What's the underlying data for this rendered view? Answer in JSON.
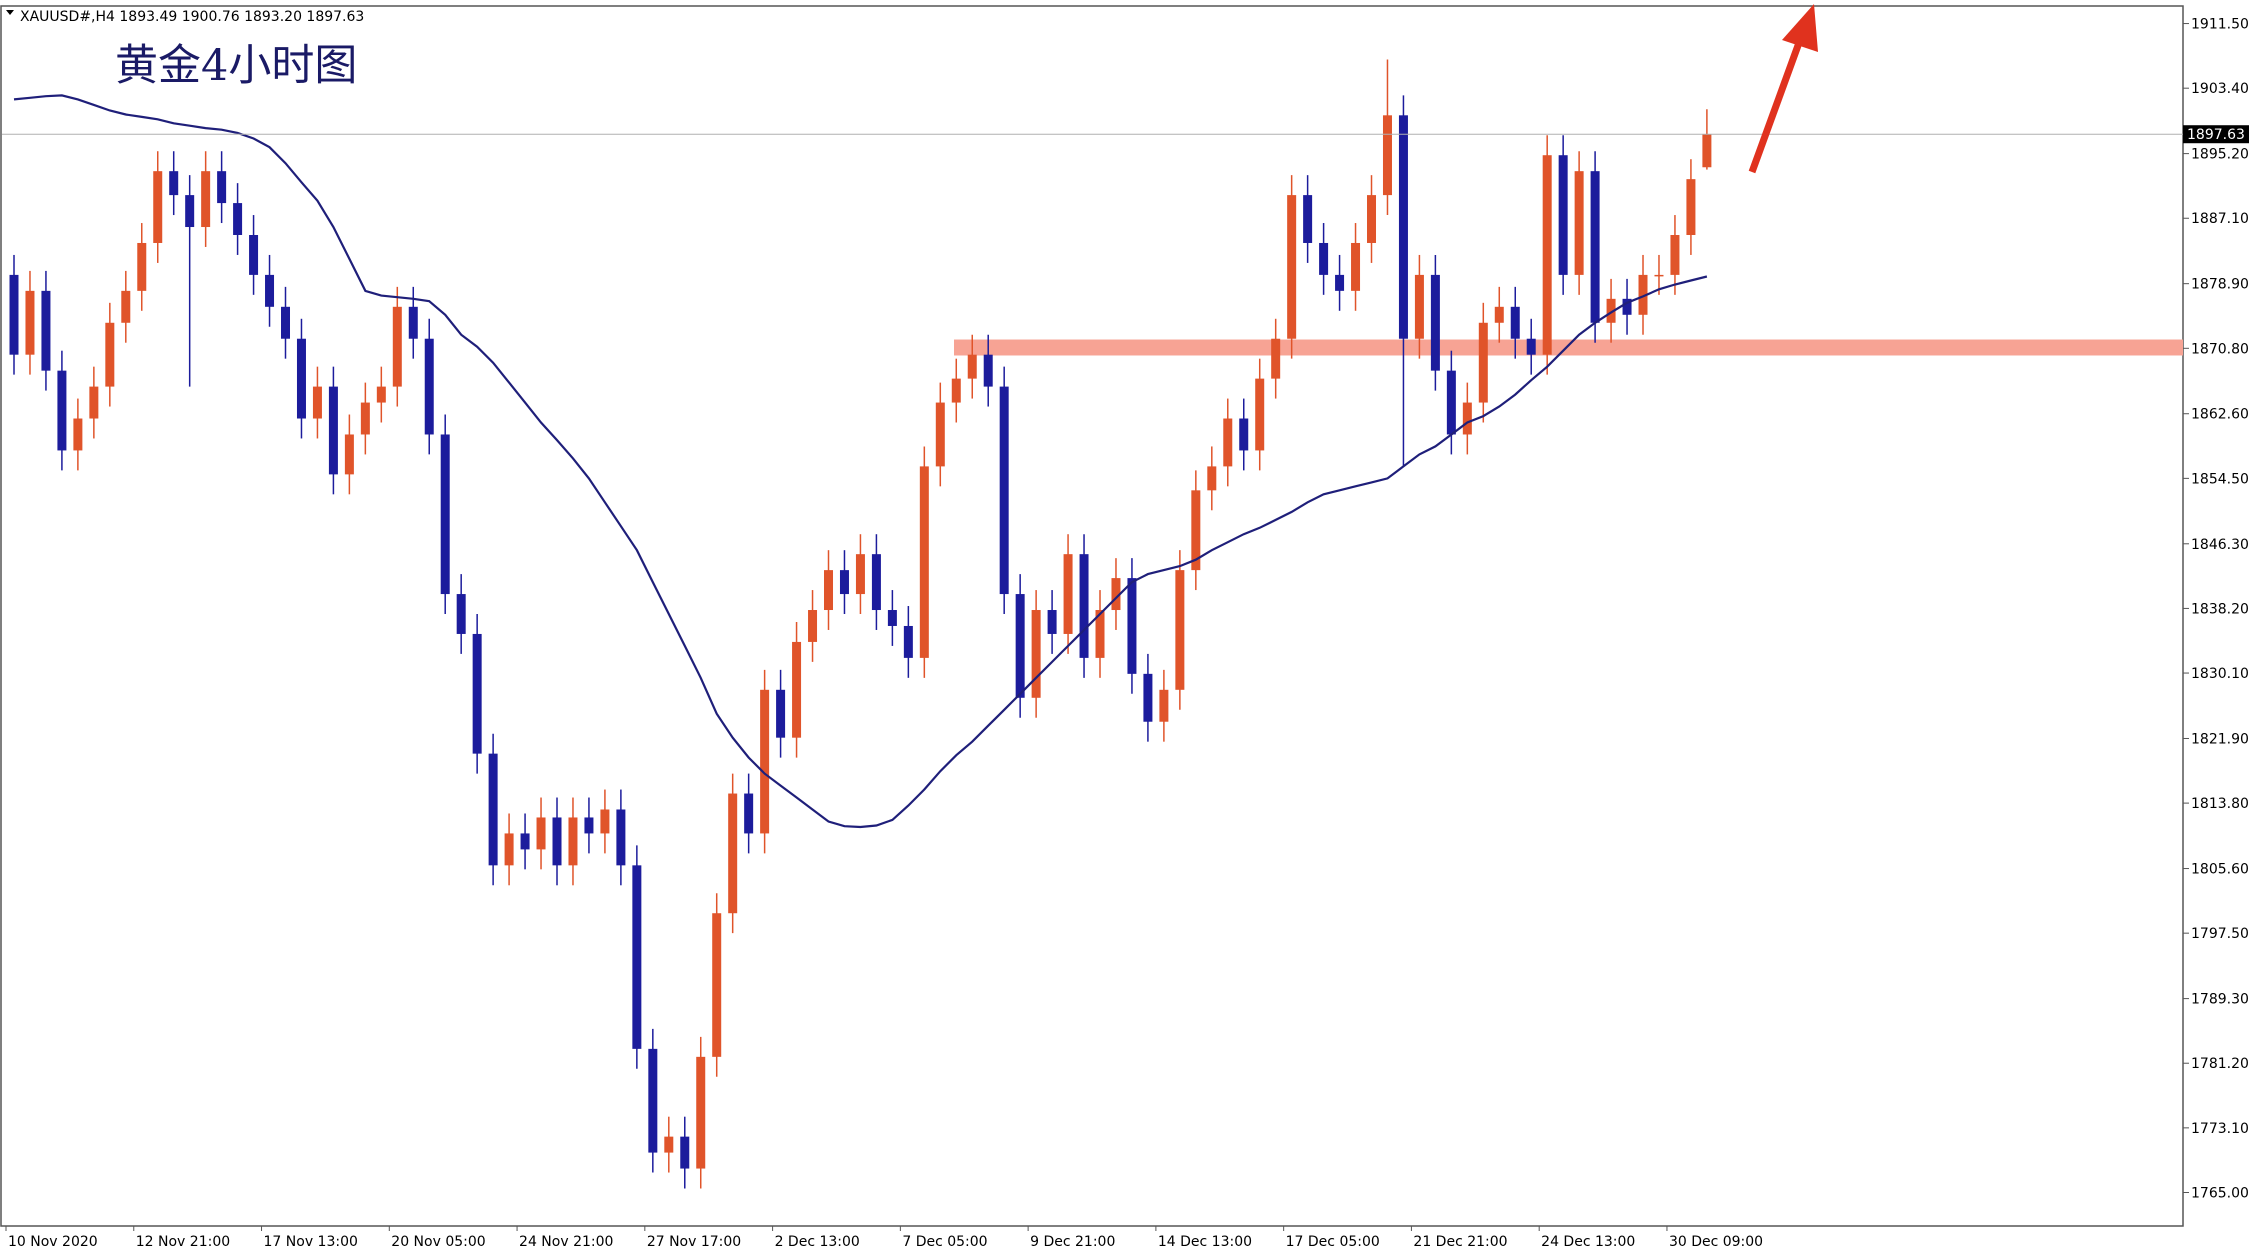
{
  "chart_data": {
    "type": "candlestick",
    "header": "XAUUSD#,H4  1893.49 1900.76 1893.20 1897.63",
    "title": "黄金4小时图",
    "categories": [
      "10 Nov 2020",
      null,
      null,
      null,
      null,
      null,
      null,
      null,
      "12 Nov 21:00",
      null,
      null,
      null,
      null,
      null,
      null,
      null,
      "17 Nov 13:00",
      null,
      null,
      null,
      null,
      null,
      null,
      null,
      "20 Nov 05:00",
      null,
      null,
      null,
      null,
      null,
      null,
      null,
      "24 Nov 21:00",
      null,
      null,
      null,
      null,
      null,
      null,
      null,
      "27 Nov 17:00",
      null,
      null,
      null,
      null,
      null,
      null,
      null,
      "2 Dec 13:00",
      null,
      null,
      null,
      null,
      null,
      null,
      null,
      "7 Dec 05:00",
      null,
      null,
      null,
      null,
      null,
      null,
      null,
      "9 Dec 21:00",
      null,
      null,
      null,
      null,
      null,
      null,
      null,
      "14 Dec 13:00",
      null,
      null,
      null,
      null,
      null,
      null,
      null,
      "17 Dec 05:00",
      null,
      null,
      null,
      null,
      null,
      null,
      null,
      "21 Dec 21:00",
      null,
      null,
      null,
      null,
      null,
      null,
      null,
      "24 Dec 13:00",
      null,
      null,
      null,
      null,
      null,
      null,
      null,
      "30 Dec 09:00",
      null,
      null
    ],
    "open": [
      1880,
      1870,
      1878,
      1868,
      1858,
      1862,
      1866,
      1874,
      1878,
      1884,
      1893,
      1890,
      1886,
      1893,
      1889,
      1885,
      1880,
      1876,
      1872,
      1862,
      1866,
      1855,
      1860,
      1864,
      1866,
      1876,
      1872,
      1860,
      1840,
      1835,
      1820,
      1806,
      1810,
      1808,
      1812,
      1806,
      1812,
      1810,
      1813,
      1806,
      1783,
      1770,
      1772,
      1768,
      1782,
      1800,
      1815,
      1810,
      1828,
      1822,
      1834,
      1838,
      1843,
      1840,
      1845,
      1838,
      1836,
      1832,
      1856,
      1864,
      1867,
      1870,
      1866,
      1840,
      1827,
      1838,
      1835,
      1845,
      1832,
      1838,
      1842,
      1830,
      1824,
      1828,
      1843,
      1853,
      1856,
      1862,
      1858,
      1867,
      1872,
      1890,
      1884,
      1880,
      1878,
      1884,
      1890,
      1900,
      1872,
      1880,
      1868,
      1860,
      1864,
      1874,
      1876,
      1872,
      1870,
      1895,
      1880,
      1893,
      1874,
      1877,
      1875,
      1880,
      1880,
      1885,
      1893.49
    ],
    "high": [
      1882.5,
      1880.5,
      1880.5,
      1870.5,
      1864.5,
      1868.5,
      1876.5,
      1880.5,
      1886.5,
      1895.5,
      1895.5,
      1892.5,
      1895.5,
      1895.5,
      1891.5,
      1887.5,
      1882.5,
      1878.5,
      1874.5,
      1868.5,
      1868.5,
      1862.5,
      1866.5,
      1868.5,
      1878.5,
      1878.5,
      1874.5,
      1862.5,
      1842.5,
      1837.5,
      1822.5,
      1812.5,
      1812.5,
      1814.5,
      1814.5,
      1814.5,
      1814.5,
      1815.5,
      1815.5,
      1808.5,
      1785.5,
      1774.5,
      1774.5,
      1784.5,
      1802.5,
      1817.5,
      1817.5,
      1830.5,
      1830.5,
      1836.5,
      1840.5,
      1845.5,
      1845.5,
      1847.5,
      1847.5,
      1840.5,
      1838.5,
      1858.5,
      1866.5,
      1869.5,
      1872.5,
      1872.5,
      1868.5,
      1842.5,
      1840.5,
      1840.5,
      1847.5,
      1847.5,
      1840.5,
      1844.5,
      1844.5,
      1832.5,
      1830.5,
      1845.5,
      1855.5,
      1858.5,
      1864.5,
      1864.5,
      1869.5,
      1874.5,
      1892.5,
      1892.5,
      1886.5,
      1882.5,
      1886.5,
      1892.5,
      1907,
      1902.5,
      1882.5,
      1882.5,
      1870.5,
      1866.5,
      1876.5,
      1878.5,
      1878.5,
      1874.5,
      1897.5,
      1897.5,
      1895.5,
      1895.5,
      1879.5,
      1879.5,
      1882.5,
      1882.5,
      1887.5,
      1894.5,
      1900.76
    ],
    "low": [
      1867.5,
      1867.5,
      1865.5,
      1855.5,
      1855.5,
      1859.5,
      1863.5,
      1871.5,
      1875.5,
      1881.5,
      1887.5,
      1866,
      1883.5,
      1886.5,
      1882.5,
      1877.5,
      1873.5,
      1869.5,
      1859.5,
      1859.5,
      1852.5,
      1852.5,
      1857.5,
      1861.5,
      1863.5,
      1869.5,
      1857.5,
      1837.5,
      1832.5,
      1817.5,
      1803.5,
      1803.5,
      1805.5,
      1805.5,
      1803.5,
      1803.5,
      1807.5,
      1807.5,
      1803.5,
      1780.5,
      1767.5,
      1767.5,
      1765.5,
      1765.5,
      1779.5,
      1797.5,
      1807.5,
      1807.5,
      1819.5,
      1819.5,
      1831.5,
      1835.5,
      1837.5,
      1837.5,
      1835.5,
      1833.5,
      1829.5,
      1829.5,
      1853.5,
      1861.5,
      1864.5,
      1863.5,
      1837.5,
      1824.5,
      1824.5,
      1832.5,
      1832.5,
      1829.5,
      1829.5,
      1835.5,
      1827.5,
      1821.5,
      1821.5,
      1825.5,
      1840.5,
      1850.5,
      1853.5,
      1855.5,
      1855.5,
      1864.5,
      1869.5,
      1881.5,
      1877.5,
      1875.5,
      1875.5,
      1881.5,
      1887.5,
      1856,
      1869.5,
      1865.5,
      1857.5,
      1857.5,
      1861.5,
      1871.5,
      1869.5,
      1867.5,
      1867.5,
      1877.5,
      1877.5,
      1871.5,
      1871.5,
      1872.5,
      1872.5,
      1877.5,
      1877.5,
      1882.5,
      1893.2
    ],
    "close": [
      1870,
      1878,
      1868,
      1858,
      1862,
      1866,
      1874,
      1878,
      1884,
      1893,
      1890,
      1886,
      1893,
      1889,
      1885,
      1880,
      1876,
      1872,
      1862,
      1866,
      1855,
      1860,
      1864,
      1866,
      1876,
      1872,
      1860,
      1840,
      1835,
      1820,
      1806,
      1810,
      1808,
      1812,
      1806,
      1812,
      1810,
      1813,
      1806,
      1783,
      1770,
      1772,
      1768,
      1782,
      1800,
      1815,
      1810,
      1828,
      1822,
      1834,
      1838,
      1843,
      1840,
      1845,
      1838,
      1836,
      1832,
      1856,
      1864,
      1867,
      1870,
      1866,
      1840,
      1827,
      1838,
      1835,
      1845,
      1832,
      1838,
      1842,
      1830,
      1824,
      1828,
      1843,
      1853,
      1856,
      1862,
      1858,
      1867,
      1872,
      1890,
      1884,
      1880,
      1878,
      1884,
      1890,
      1900,
      1872,
      1880,
      1868,
      1860,
      1864,
      1874,
      1876,
      1872,
      1870,
      1895,
      1880,
      1893,
      1874,
      1877,
      1875,
      1880,
      1880,
      1885,
      1892,
      1897.63
    ],
    "up_color": "#e0542a",
    "down_color": "#1c1c9c",
    "ma": {
      "color": "#1f1f7a",
      "values": [
        1902,
        1902.2,
        1902.4,
        1902.5,
        1902,
        1901.3,
        1900.6,
        1900.1,
        1899.8,
        1899.5,
        1899,
        1898.7,
        1898.4,
        1898.2,
        1897.8,
        1897.1,
        1896,
        1894,
        1891.6,
        1889.3,
        1886,
        1882,
        1878,
        1877.4,
        1877.2,
        1877,
        1876.7,
        1875,
        1872.5,
        1871,
        1869,
        1866.5,
        1864,
        1861.5,
        1859.3,
        1857,
        1854.5,
        1851.5,
        1848.5,
        1845.5,
        1841.5,
        1837.5,
        1833.5,
        1829.5,
        1825,
        1822,
        1819.5,
        1817.5,
        1816,
        1814.5,
        1813,
        1811.5,
        1810.9,
        1810.8,
        1811,
        1811.7,
        1813.5,
        1815.5,
        1817.8,
        1819.8,
        1821.5,
        1823.5,
        1825.5,
        1827.5,
        1829.5,
        1831.5,
        1833.5,
        1835.5,
        1837.5,
        1839.5,
        1841.5,
        1842.5,
        1843,
        1843.5,
        1844.3,
        1845.5,
        1846.5,
        1847.5,
        1848.3,
        1849.3,
        1850.3,
        1851.5,
        1852.5,
        1853,
        1853.5,
        1854,
        1854.5,
        1856,
        1857.5,
        1858.5,
        1860,
        1861.5,
        1862.3,
        1863.5,
        1865,
        1866.8,
        1868.5,
        1870.5,
        1872.5,
        1874,
        1875.3,
        1876.5,
        1877.3,
        1878.2,
        1878.8,
        1879.3,
        1879.8
      ]
    },
    "zone": {
      "from": 1869.9,
      "to": 1871.9,
      "color": "#f7a394"
    },
    "ylim": [
      1760.8,
      1913.7
    ],
    "yticks": [
      {
        "value": 1765,
        "label": "1765.00"
      },
      {
        "value": 1773.1,
        "label": "1773.10"
      },
      {
        "value": 1781.2,
        "label": "1781.20"
      },
      {
        "value": 1789.3,
        "label": "1789.30"
      },
      {
        "value": 1797.5,
        "label": "1797.50"
      },
      {
        "value": 1805.6,
        "label": "1805.60"
      },
      {
        "value": 1813.8,
        "label": "1813.80"
      },
      {
        "value": 1821.9,
        "label": "1821.90"
      },
      {
        "value": 1830.1,
        "label": "1830.10"
      },
      {
        "value": 1838.2,
        "label": "1838.20"
      },
      {
        "value": 1846.3,
        "label": "1846.30"
      },
      {
        "value": 1854.5,
        "label": "1854.50"
      },
      {
        "value": 1862.6,
        "label": "1862.60"
      },
      {
        "value": 1870.8,
        "label": "1870.80"
      },
      {
        "value": 1878.9,
        "label": "1878.90"
      },
      {
        "value": 1887.1,
        "label": "1887.10"
      },
      {
        "value": 1895.2,
        "label": "1895.20"
      },
      {
        "value": 1903.4,
        "label": "1903.40"
      },
      {
        "value": 1911.5,
        "label": "1911.50"
      }
    ]
  }
}
